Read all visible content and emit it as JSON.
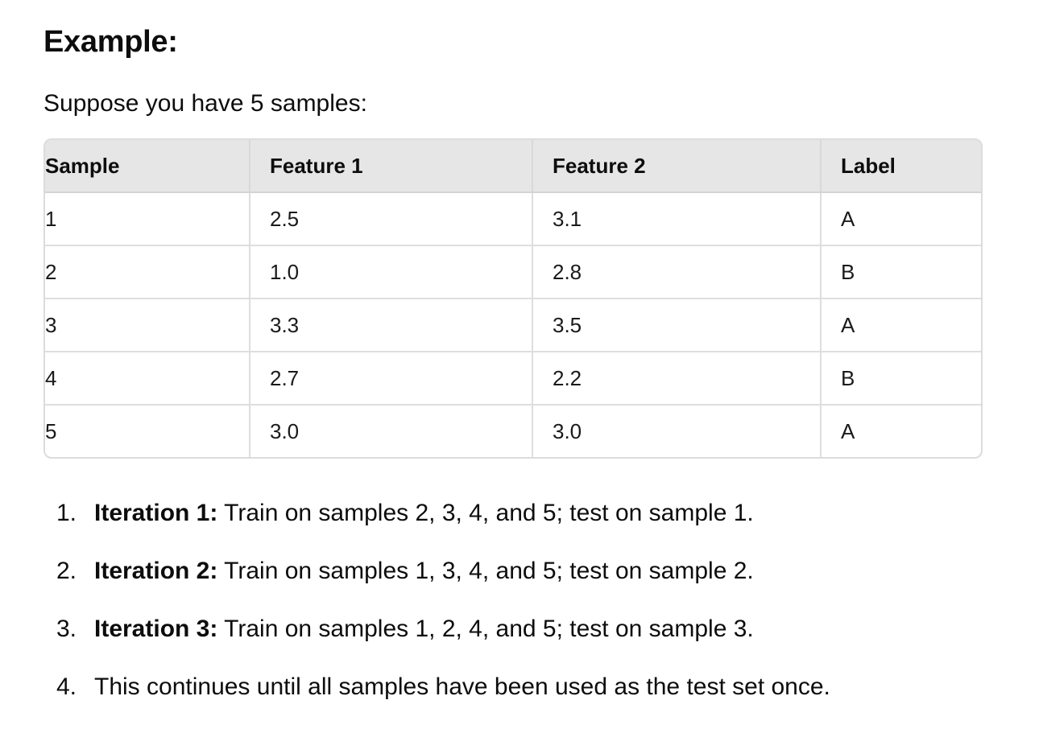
{
  "heading": "Example:",
  "intro": "Suppose you have 5 samples:",
  "table": {
    "headers": [
      "Sample",
      "Feature 1",
      "Feature 2",
      "Label"
    ],
    "rows": [
      [
        "1",
        "2.5",
        "3.1",
        "A"
      ],
      [
        "2",
        "1.0",
        "2.8",
        "B"
      ],
      [
        "3",
        "3.3",
        "3.5",
        "A"
      ],
      [
        "4",
        "2.7",
        "2.2",
        "B"
      ],
      [
        "5",
        "3.0",
        "3.0",
        "A"
      ]
    ]
  },
  "steps": [
    {
      "num": "1.",
      "bold": "Iteration 1:",
      "text": " Train on samples 2, 3, 4, and 5; test on sample 1."
    },
    {
      "num": "2.",
      "bold": "Iteration 2:",
      "text": " Train on samples 1, 3, 4, and 5; test on sample 2."
    },
    {
      "num": "3.",
      "bold": "Iteration 3:",
      "text": " Train on samples 1, 2, 4, and 5; test on sample 3."
    },
    {
      "num": "4.",
      "bold": "",
      "text": "This continues until all samples have been used as the test set once."
    }
  ]
}
